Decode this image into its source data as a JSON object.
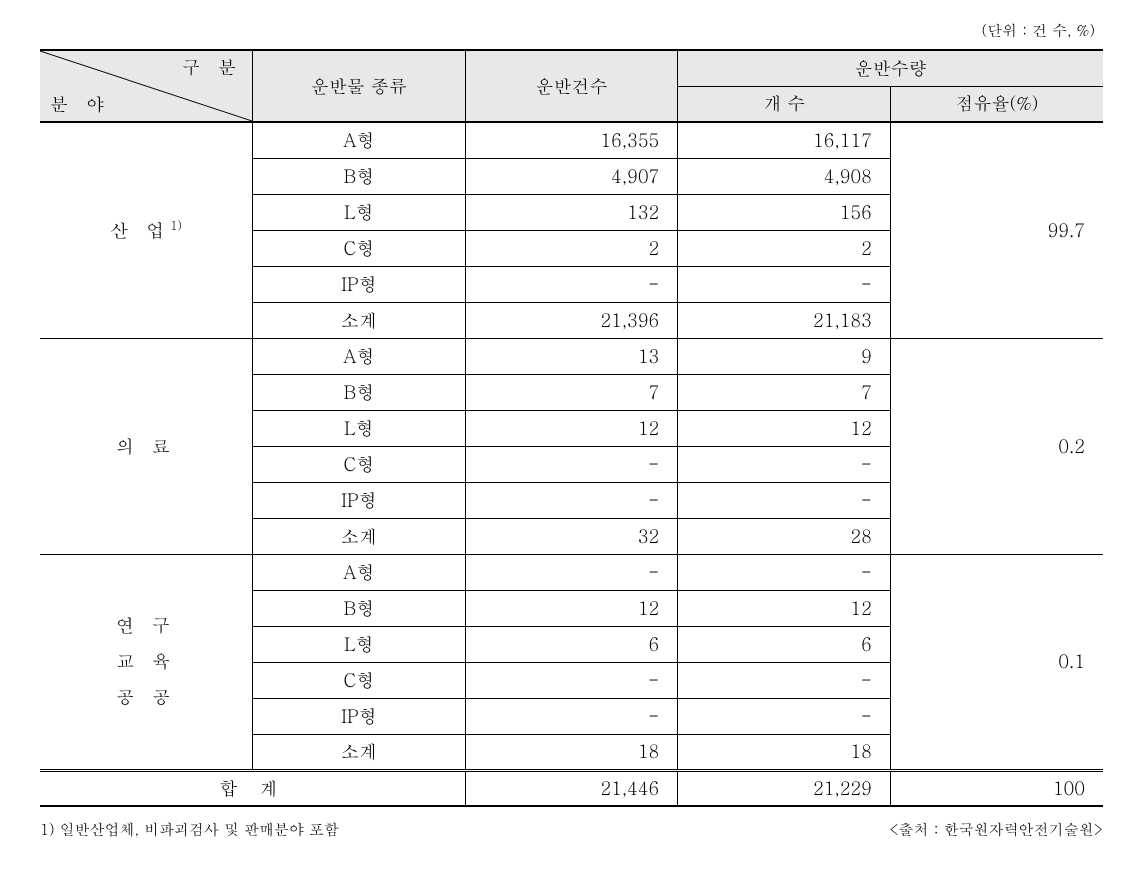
{
  "unit_text": "(단위 : 건 수, %)",
  "header": {
    "diag_top": "구 분",
    "diag_bottom": "분 야",
    "col_type": "운반물 종류",
    "col_count": "운반건수",
    "col_qty_group": "운반수량",
    "col_qty": "개 수",
    "col_share": "점유율(%)"
  },
  "sectors": [
    {
      "label": "산 업",
      "sup": "1)",
      "share": "99.7",
      "rows": [
        {
          "type": "A형",
          "count": "16,355",
          "qty": "16,117"
        },
        {
          "type": "B형",
          "count": "4,907",
          "qty": "4,908"
        },
        {
          "type": "L형",
          "count": "132",
          "qty": "156"
        },
        {
          "type": "C형",
          "count": "2",
          "qty": "2"
        },
        {
          "type": "IP형",
          "count": "-",
          "qty": "-"
        },
        {
          "type": "소계",
          "count": "21,396",
          "qty": "21,183"
        }
      ]
    },
    {
      "label": "의 료",
      "share": "0.2",
      "rows": [
        {
          "type": "A형",
          "count": "13",
          "qty": "9"
        },
        {
          "type": "B형",
          "count": "7",
          "qty": "7"
        },
        {
          "type": "L형",
          "count": "12",
          "qty": "12"
        },
        {
          "type": "C형",
          "count": "-",
          "qty": "-"
        },
        {
          "type": "IP형",
          "count": "-",
          "qty": "-"
        },
        {
          "type": "소계",
          "count": "32",
          "qty": "28"
        }
      ]
    },
    {
      "label_lines": [
        "연 구",
        "교 육",
        "공 공"
      ],
      "share": "0.1",
      "rows": [
        {
          "type": "A형",
          "count": "-",
          "qty": "-"
        },
        {
          "type": "B형",
          "count": "12",
          "qty": "12"
        },
        {
          "type": "L형",
          "count": "6",
          "qty": "6"
        },
        {
          "type": "C형",
          "count": "-",
          "qty": "-"
        },
        {
          "type": "IP형",
          "count": "-",
          "qty": "-"
        },
        {
          "type": "소계",
          "count": "18",
          "qty": "18"
        }
      ]
    }
  ],
  "total": {
    "label": "합 계",
    "count": "21,446",
    "qty": "21,229",
    "share": "100"
  },
  "footnote": "1) 일반산업체, 비파괴검사 및 판매분야 포함",
  "source": "<출처 : 한국원자력안전기술원>",
  "style": {
    "bg": "#ffffff",
    "header_bg": "#e8e8e8",
    "border_color": "#000000",
    "font_size_body": 18,
    "font_size_small": 15
  }
}
